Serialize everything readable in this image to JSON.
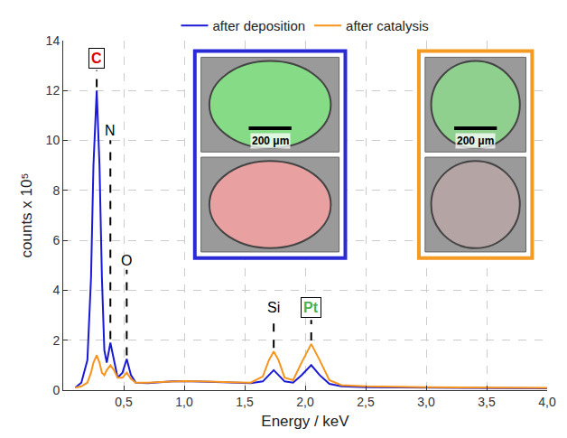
{
  "chart_data": {
    "type": "line",
    "xlabel": "Energy / keV",
    "ylabel": "counts x 10⁵",
    "x": [
      0.1,
      0.15,
      0.2,
      0.23,
      0.25,
      0.277,
      0.3,
      0.32,
      0.34,
      0.36,
      0.39,
      0.42,
      0.45,
      0.49,
      0.525,
      0.56,
      0.6,
      0.7,
      0.8,
      0.9,
      1.0,
      1.2,
      1.4,
      1.55,
      1.65,
      1.7,
      1.74,
      1.78,
      1.83,
      1.9,
      1.97,
      2.05,
      2.12,
      2.2,
      2.3,
      2.5,
      3.0,
      3.5,
      4.0
    ],
    "series": [
      {
        "name": "after deposition",
        "color": "#1a1ad6",
        "line_style": "solid",
        "values": [
          0.1,
          0.3,
          1.2,
          4.5,
          9.0,
          12.0,
          9.0,
          4.5,
          1.6,
          1.1,
          1.9,
          1.2,
          0.5,
          0.7,
          1.25,
          0.6,
          0.3,
          0.28,
          0.32,
          0.35,
          0.36,
          0.33,
          0.3,
          0.28,
          0.35,
          0.6,
          0.8,
          0.6,
          0.35,
          0.3,
          0.6,
          1.0,
          0.6,
          0.25,
          0.15,
          0.12,
          0.1,
          0.08,
          0.07
        ]
      },
      {
        "name": "after catalysis",
        "color": "#f7941d",
        "line_style": "solid",
        "values": [
          0.1,
          0.15,
          0.3,
          0.7,
          1.1,
          1.4,
          1.1,
          0.7,
          0.6,
          0.8,
          1.0,
          0.8,
          0.5,
          0.5,
          0.7,
          0.45,
          0.3,
          0.3,
          0.33,
          0.35,
          0.36,
          0.34,
          0.32,
          0.3,
          0.55,
          1.2,
          1.55,
          1.2,
          0.5,
          0.4,
          1.1,
          1.85,
          1.2,
          0.4,
          0.2,
          0.15,
          0.12,
          0.1,
          0.09
        ]
      }
    ],
    "xlim": [
      0,
      4
    ],
    "xticks": [
      {
        "value": 0.5,
        "label": "0,5"
      },
      {
        "value": 1.0,
        "label": "1,0"
      },
      {
        "value": 1.5,
        "label": "1,5"
      },
      {
        "value": 2.0,
        "label": "2,0"
      },
      {
        "value": 2.5,
        "label": "2,5"
      },
      {
        "value": 3.0,
        "label": "3,0"
      },
      {
        "value": 3.5,
        "label": "3,5"
      },
      {
        "value": 4.0,
        "label": "4,0"
      }
    ],
    "ylim": [
      0,
      14
    ],
    "yticks": [
      0,
      2,
      4,
      6,
      8,
      10,
      12,
      14
    ],
    "grid": true,
    "legend": "top",
    "annotations": [
      {
        "text": "C",
        "x": 0.277,
        "y": 13.3,
        "color": "#e00000",
        "marker": "box"
      },
      {
        "text": "N",
        "x": 0.39,
        "y": 10.4,
        "color": "#000000"
      },
      {
        "text": "O",
        "x": 0.525,
        "y": 5.2,
        "color": "#000000"
      },
      {
        "text": "Si",
        "x": 1.74,
        "y": 3.3,
        "color": "#000000"
      },
      {
        "text": "Pt",
        "x": 2.05,
        "y": 3.3,
        "color": "#4caf50",
        "marker": "box"
      }
    ],
    "insets": [
      {
        "color": "#2b2bd6",
        "colors": [
          "#86dc86",
          "#e8a0a0"
        ],
        "scale_bar": "200 μm"
      },
      {
        "color": "#f59a23",
        "colors": [
          "#8fd08f",
          "#b4a4a4"
        ],
        "scale_bar": "200 μm"
      }
    ]
  }
}
